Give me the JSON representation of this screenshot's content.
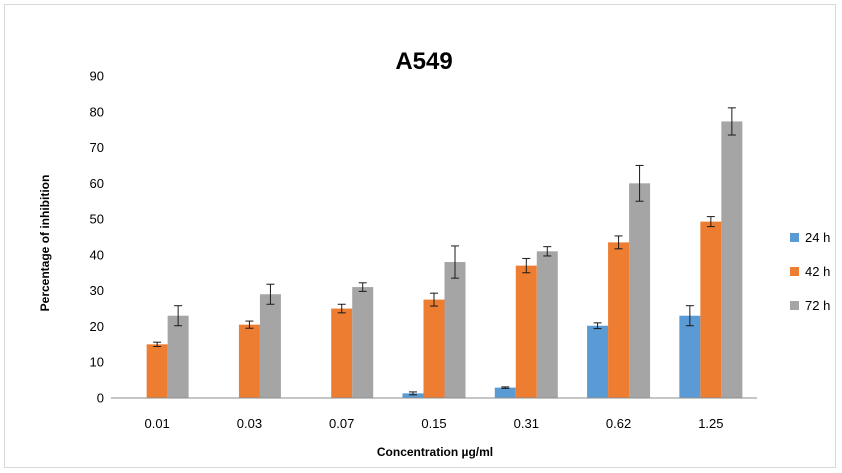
{
  "chart_data": {
    "type": "bar",
    "title": "A549",
    "xlabel": "Concentration µg/ml",
    "ylabel": "Percentage of inhibition",
    "categories": [
      "0.01",
      "0.03",
      "0.07",
      "0.15",
      "0.31",
      "0.62",
      "1.25"
    ],
    "ylim": [
      0,
      90
    ],
    "yticks": [
      "0",
      "10",
      "20",
      "30",
      "40",
      "50",
      "60",
      "70",
      "80",
      "90"
    ],
    "grid": false,
    "legend_position": "right",
    "series": [
      {
        "name": "24 h",
        "color": "#5b9bd5",
        "values": [
          null,
          null,
          null,
          1.3,
          2.9,
          20.2,
          23.0
        ],
        "errors": [
          null,
          null,
          null,
          0.4,
          0.2,
          0.8,
          2.8
        ]
      },
      {
        "name": "42 h",
        "color": "#ed7d31",
        "values": [
          15.0,
          20.5,
          25.0,
          27.5,
          37.0,
          43.5,
          49.3
        ],
        "errors": [
          0.6,
          1.0,
          1.2,
          1.8,
          2.0,
          1.8,
          1.4
        ]
      },
      {
        "name": "72 h",
        "color": "#a5a5a5",
        "values": [
          23.0,
          29.0,
          31.0,
          38.0,
          41.0,
          60.0,
          77.3
        ],
        "errors": [
          2.8,
          2.8,
          1.2,
          4.5,
          1.3,
          5.0,
          3.8
        ]
      }
    ]
  }
}
